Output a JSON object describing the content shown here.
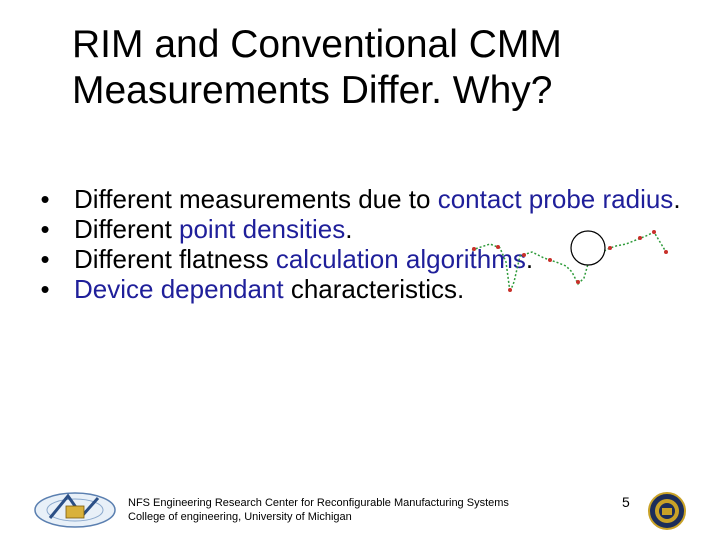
{
  "title": {
    "line1": "RIM and Conventional CMM",
    "line2": "Measurements Differ. Why?"
  },
  "bullets": [
    {
      "parts": [
        {
          "text": "Different measurements due to ",
          "hl": false
        },
        {
          "text": "contact probe radius",
          "hl": true
        },
        {
          "text": ".",
          "hl": false
        }
      ]
    },
    {
      "parts": [
        {
          "text": "Different ",
          "hl": false
        },
        {
          "text": "point densities",
          "hl": true
        },
        {
          "text": ".",
          "hl": false
        }
      ]
    },
    {
      "parts": [
        {
          "text": "Different flatness ",
          "hl": false
        },
        {
          "text": "calculation algorithms",
          "hl": true
        },
        {
          "text": ".",
          "hl": false
        }
      ]
    },
    {
      "parts": [
        {
          "text": "Device dependant",
          "hl": true
        },
        {
          "text": " characteristics.",
          "hl": false
        }
      ]
    }
  ],
  "bullet_symbol": "•",
  "footer": {
    "line1": "NFS Engineering Research Center for Reconfigurable Manufacturing Systems",
    "line2": "College of engineering, University of Michigan"
  },
  "page_number": "5",
  "colors": {
    "highlight": "#1f1f9a",
    "probe_points": "#2e9b3a",
    "measured_points": "#c8302a"
  },
  "icons": {
    "illustration": "probe-surface-illustration",
    "left_logo": "erc-rms-logo",
    "right_logo": "university-seal"
  }
}
